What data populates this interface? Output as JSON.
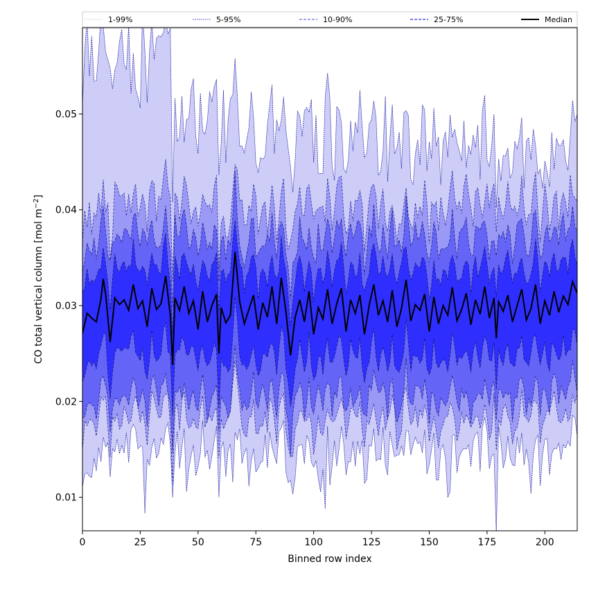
{
  "chart_data": {
    "type": "area",
    "xlabel": "Binned row index",
    "ylabel_main": "CO total vertical column [mol m",
    "ylabel_sup": "−2",
    "ylabel_close": "]",
    "xlim": [
      0,
      214
    ],
    "ylim": [
      0.0065,
      0.059
    ],
    "xticks": [
      {
        "value": 0,
        "label": "0"
      },
      {
        "value": 25,
        "label": "25"
      },
      {
        "value": 50,
        "label": "50"
      },
      {
        "value": 75,
        "label": "75"
      },
      {
        "value": 100,
        "label": "100"
      },
      {
        "value": 125,
        "label": "125"
      },
      {
        "value": 150,
        "label": "150"
      },
      {
        "value": 175,
        "label": "175"
      },
      {
        "value": 200,
        "label": "200"
      }
    ],
    "yticks": [
      {
        "value": 0.01,
        "label": "0.01"
      },
      {
        "value": 0.02,
        "label": "0.02"
      },
      {
        "value": 0.03,
        "label": "0.03"
      },
      {
        "value": 0.04,
        "label": "0.04"
      },
      {
        "value": 0.05,
        "label": "0.05"
      }
    ],
    "legend": {
      "placement": "top",
      "entries": [
        {
          "label": "1-99%",
          "color": "#c8c8f4",
          "style": "solid-thin"
        },
        {
          "label": "5-95%",
          "color": "#3a3ac8",
          "style": "dashed-thin"
        },
        {
          "label": "10-90%",
          "color": "#6a6aec",
          "style": "dashed"
        },
        {
          "label": "25-75%",
          "color": "#2a2ad8",
          "style": "dashed"
        },
        {
          "label": "Median",
          "color": "#000000",
          "style": "solid-thick"
        }
      ]
    },
    "band_colors": {
      "p1_99": "#cdcdf8",
      "p5_95": "#9a9af6",
      "p10_90": "#6464f6",
      "p25_75": "#2e2efe",
      "median": "#000000"
    },
    "series": [
      {
        "name": "Median",
        "x": [
          0,
          2,
          4,
          6,
          8,
          9,
          10,
          12,
          14,
          16,
          18,
          20,
          22,
          24,
          26,
          28,
          30,
          32,
          34,
          36,
          38,
          39,
          40,
          42,
          44,
          46,
          48,
          50,
          52,
          54,
          56,
          58,
          59,
          60,
          62,
          64,
          66,
          68,
          70,
          72,
          74,
          76,
          78,
          80,
          82,
          84,
          86,
          88,
          90,
          92,
          94,
          96,
          98,
          100,
          102,
          104,
          106,
          108,
          110,
          112,
          114,
          116,
          118,
          120,
          122,
          124,
          126,
          128,
          130,
          132,
          134,
          136,
          138,
          140,
          142,
          144,
          146,
          148,
          150,
          152,
          154,
          156,
          158,
          160,
          162,
          164,
          166,
          168,
          170,
          172,
          174,
          176,
          178,
          179,
          180,
          182,
          184,
          186,
          188,
          190,
          192,
          194,
          196,
          198,
          200,
          202,
          204,
          206,
          208,
          210,
          212,
          214
        ],
        "y": [
          0.0271,
          0.0292,
          0.0287,
          0.0283,
          0.0307,
          0.0328,
          0.0312,
          0.0262,
          0.0308,
          0.0301,
          0.0306,
          0.0295,
          0.0322,
          0.0297,
          0.0305,
          0.0278,
          0.0318,
          0.0296,
          0.0302,
          0.0331,
          0.029,
          0.0238,
          0.0308,
          0.0295,
          0.032,
          0.0292,
          0.0305,
          0.0275,
          0.0315,
          0.0283,
          0.03,
          0.0312,
          0.025,
          0.0298,
          0.0282,
          0.029,
          0.0356,
          0.0304,
          0.0281,
          0.0296,
          0.0311,
          0.0275,
          0.0303,
          0.0288,
          0.032,
          0.0281,
          0.0329,
          0.0294,
          0.0248,
          0.0288,
          0.0306,
          0.0283,
          0.0315,
          0.027,
          0.0298,
          0.0286,
          0.0317,
          0.0281,
          0.0302,
          0.0318,
          0.0273,
          0.0306,
          0.0292,
          0.0311,
          0.027,
          0.03,
          0.0322,
          0.029,
          0.0305,
          0.0283,
          0.0316,
          0.0278,
          0.0297,
          0.0327,
          0.0284,
          0.0301,
          0.0295,
          0.0312,
          0.0273,
          0.0309,
          0.0281,
          0.03,
          0.029,
          0.0319,
          0.0284,
          0.0296,
          0.0313,
          0.028,
          0.0306,
          0.0291,
          0.032,
          0.0287,
          0.0308,
          0.0266,
          0.0304,
          0.0294,
          0.0311,
          0.0283,
          0.03,
          0.0317,
          0.0285,
          0.0297,
          0.0322,
          0.0281,
          0.0305,
          0.029,
          0.0315,
          0.0293,
          0.031,
          0.0301,
          0.0325,
          0.0313
        ]
      }
    ]
  }
}
